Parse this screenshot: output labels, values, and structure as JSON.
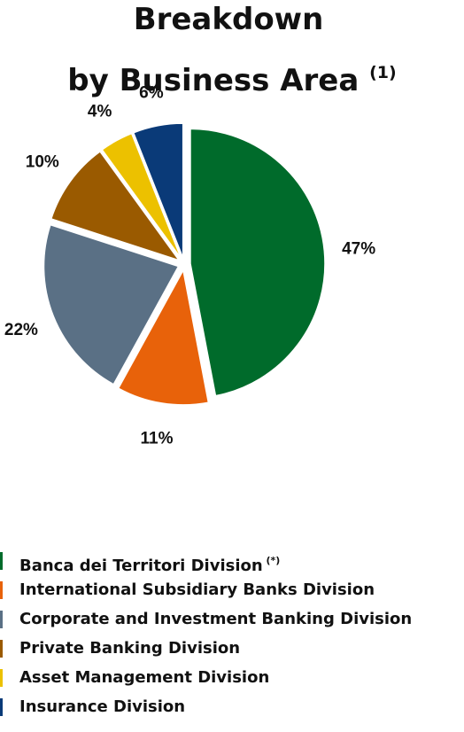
{
  "title": {
    "line1": "Breakdown",
    "line2": "by Business Area",
    "note_marker": "(1)"
  },
  "chart_data": {
    "type": "pie",
    "title": "Breakdown by Business Area (1)",
    "legend_position": "bottom",
    "slices": [
      {
        "label": "Banca dei Territori Division",
        "marker": "(*)",
        "value": 47,
        "display": "47%",
        "color": "#006b2b"
      },
      {
        "label": "International Subsidiary Banks Division",
        "marker": "",
        "value": 11,
        "display": "11%",
        "color": "#e8620a"
      },
      {
        "label": "Corporate and Investment Banking Division",
        "marker": "",
        "value": 22,
        "display": "22%",
        "color": "#5a7085"
      },
      {
        "label": "Private Banking Division",
        "marker": "",
        "value": 10,
        "display": "10%",
        "color": "#9a5a00"
      },
      {
        "label": "Asset Management Division",
        "marker": "",
        "value": 4,
        "display": "4%",
        "color": "#ecc100"
      },
      {
        "label": "Insurance Division",
        "marker": "",
        "value": 6,
        "display": "6%",
        "color": "#0a3a78"
      }
    ]
  }
}
